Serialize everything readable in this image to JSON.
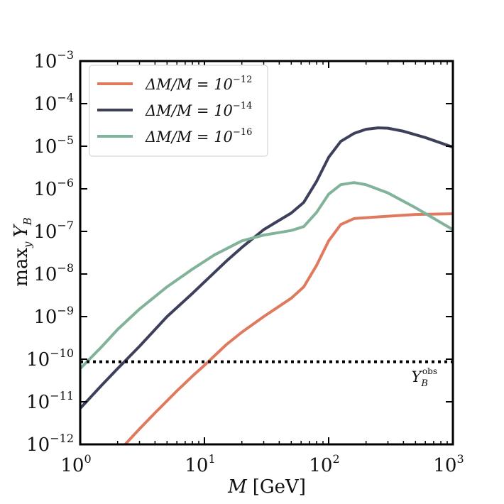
{
  "chart_data": {
    "type": "line",
    "xscale": "log",
    "yscale": "log",
    "xlim": [
      1,
      1000
    ],
    "ylim": [
      1e-12,
      0.001
    ],
    "xlabel": {
      "base": "M",
      "unit": "[GeV]"
    },
    "ylabel": {
      "base": "max",
      "sub": "y",
      "var": "Y",
      "varsub": "B"
    },
    "x_ticks": [
      {
        "value": 1,
        "base": "10",
        "exp": "0"
      },
      {
        "value": 10,
        "base": "10",
        "exp": "1"
      },
      {
        "value": 100,
        "base": "10",
        "exp": "2"
      },
      {
        "value": 1000,
        "base": "10",
        "exp": "3"
      }
    ],
    "y_ticks": [
      {
        "value": 1e-12,
        "base": "10",
        "exp": "−12"
      },
      {
        "value": 1e-11,
        "base": "10",
        "exp": "−11"
      },
      {
        "value": 1e-10,
        "base": "10",
        "exp": "−10"
      },
      {
        "value": 1e-09,
        "base": "10",
        "exp": "−9"
      },
      {
        "value": 1e-08,
        "base": "10",
        "exp": "−8"
      },
      {
        "value": 1e-07,
        "base": "10",
        "exp": "−7"
      },
      {
        "value": 1e-06,
        "base": "10",
        "exp": "−6"
      },
      {
        "value": 1e-05,
        "base": "10",
        "exp": "−5"
      },
      {
        "value": 0.0001,
        "base": "10",
        "exp": "−4"
      },
      {
        "value": 0.001,
        "base": "10",
        "exp": "−3"
      }
    ],
    "legend": {
      "placement": "top-left"
    },
    "series": [
      {
        "name": "ΔM/M = 10^-12",
        "label_main": "ΔM/M = 10",
        "label_exp": "−12",
        "color": "#e07a5f",
        "x": [
          2.3,
          3,
          4,
          6,
          8,
          10,
          15,
          20,
          30,
          50,
          63,
          80,
          100,
          125,
          160,
          250,
          500,
          1000
        ],
        "y": [
          1e-12,
          2.3e-12,
          5.5e-12,
          1.8e-11,
          4e-11,
          7.2e-11,
          2.2e-10,
          4.3e-10,
          1e-09,
          2.7e-09,
          5e-09,
          1.6e-08,
          6e-08,
          1.45e-07,
          2e-07,
          2.2e-07,
          2.5e-07,
          2.6e-07
        ]
      },
      {
        "name": "ΔM/M = 10^-14",
        "label_main": "ΔM/M = 10",
        "label_exp": "−14",
        "color": "#3d405b",
        "x": [
          1,
          1.5,
          2,
          3,
          5,
          8,
          15,
          20,
          30,
          50,
          63,
          80,
          100,
          125,
          160,
          200,
          250,
          300,
          400,
          600,
          1000
        ],
        "y": [
          7e-12,
          2.5e-11,
          6e-11,
          2e-10,
          1e-09,
          3.5e-09,
          2e-08,
          4.2e-08,
          1.1e-07,
          2.7e-07,
          4.8e-07,
          1.5e-06,
          5.5e-06,
          1.3e-05,
          2e-05,
          2.5e-05,
          2.7e-05,
          2.65e-05,
          2.25e-05,
          1.6e-05,
          9.5e-06
        ]
      },
      {
        "name": "ΔM/M = 10^-16",
        "label_main": "ΔM/M = 10",
        "label_exp": "−16",
        "color": "#81b29a",
        "x": [
          1,
          1.5,
          2,
          3,
          5,
          8,
          12,
          20,
          30,
          50,
          63,
          80,
          100,
          125,
          160,
          200,
          300,
          500,
          1000
        ],
        "y": [
          6e-11,
          2e-10,
          5e-10,
          1.5e-09,
          5e-09,
          1.3e-08,
          2.8e-08,
          6e-08,
          8.2e-08,
          1.05e-07,
          1.3e-07,
          2.8e-07,
          7.5e-07,
          1.25e-06,
          1.4e-06,
          1.25e-06,
          8e-07,
          3.6e-07,
          1.1e-07
        ]
      }
    ],
    "reference_line": {
      "value": 8.7e-11,
      "style": "dotted",
      "color": "#000000",
      "label_var": "Y",
      "label_sub": "B",
      "label_sup": "obs"
    }
  }
}
